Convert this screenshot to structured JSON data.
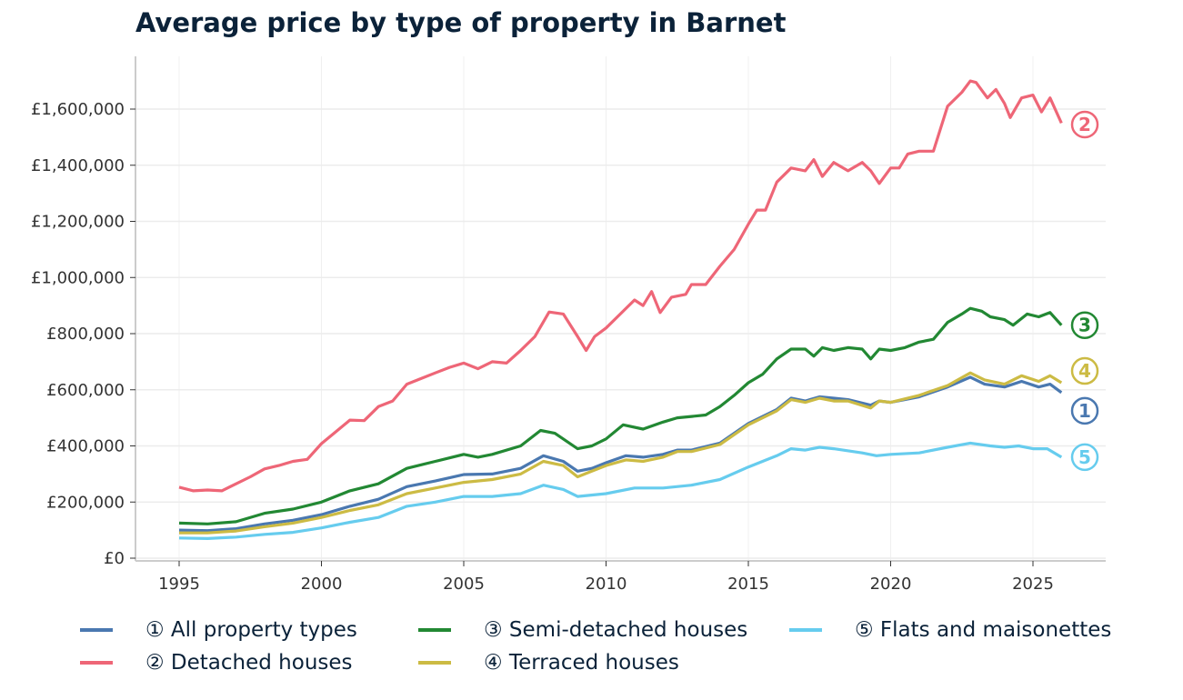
{
  "chart_data": {
    "type": "line",
    "title": "Average price by type of property in Barnet",
    "xlabel": "",
    "ylabel": "",
    "xlim": [
      1993.5,
      2027.7
    ],
    "ylim": [
      -10000,
      1800000
    ],
    "x_ticks": [
      1995,
      2000,
      2005,
      2010,
      2015,
      2020,
      2025
    ],
    "x_tick_labels": [
      "1995",
      "2000",
      "2005",
      "2010",
      "2015",
      "2020",
      "2025"
    ],
    "y_ticks": [
      0,
      200000,
      400000,
      600000,
      800000,
      1000000,
      1200000,
      1400000,
      1600000
    ],
    "y_tick_labels": [
      "£0",
      "£200,000",
      "£400,000",
      "£600,000",
      "£800,000",
      "£1,000,000",
      "£1,200,000",
      "£1,400,000",
      "£1,600,000"
    ],
    "grid": true,
    "legend_position": "bottom",
    "series": [
      {
        "name": "① All property types",
        "marker": "1",
        "color": "#4a78b0",
        "points": [
          [
            1995,
            100000
          ],
          [
            1996,
            98000
          ],
          [
            1997,
            105000
          ],
          [
            1998,
            122000
          ],
          [
            1999,
            135000
          ],
          [
            2000,
            155000
          ],
          [
            2001,
            185000
          ],
          [
            2002,
            210000
          ],
          [
            2003,
            255000
          ],
          [
            2004,
            275000
          ],
          [
            2005,
            298000
          ],
          [
            2006,
            300000
          ],
          [
            2007,
            320000
          ],
          [
            2007.8,
            365000
          ],
          [
            2008.5,
            345000
          ],
          [
            2009,
            310000
          ],
          [
            2009.5,
            320000
          ],
          [
            2010,
            340000
          ],
          [
            2010.7,
            365000
          ],
          [
            2011.3,
            360000
          ],
          [
            2012,
            370000
          ],
          [
            2012.5,
            385000
          ],
          [
            2013,
            385000
          ],
          [
            2014,
            410000
          ],
          [
            2015,
            480000
          ],
          [
            2016,
            530000
          ],
          [
            2016.5,
            570000
          ],
          [
            2017,
            560000
          ],
          [
            2017.5,
            575000
          ],
          [
            2018,
            570000
          ],
          [
            2018.5,
            565000
          ],
          [
            2019.3,
            545000
          ],
          [
            2019.6,
            560000
          ],
          [
            2020,
            555000
          ],
          [
            2021,
            575000
          ],
          [
            2022,
            610000
          ],
          [
            2022.8,
            645000
          ],
          [
            2023.3,
            620000
          ],
          [
            2024,
            610000
          ],
          [
            2024.6,
            630000
          ],
          [
            2025.2,
            610000
          ],
          [
            2025.6,
            620000
          ],
          [
            2026,
            590000
          ]
        ]
      },
      {
        "name": "② Detached houses",
        "marker": "2",
        "color": "#ee6677",
        "points": [
          [
            1995,
            253000
          ],
          [
            1995.5,
            240000
          ],
          [
            1996,
            243000
          ],
          [
            1996.5,
            240000
          ],
          [
            1997,
            265000
          ],
          [
            1997.5,
            290000
          ],
          [
            1998,
            318000
          ],
          [
            1998.5,
            330000
          ],
          [
            1999,
            345000
          ],
          [
            1999.5,
            352000
          ],
          [
            2000,
            408000
          ],
          [
            2000.5,
            450000
          ],
          [
            2001,
            492000
          ],
          [
            2001.5,
            490000
          ],
          [
            2002,
            540000
          ],
          [
            2002.5,
            560000
          ],
          [
            2003,
            620000
          ],
          [
            2003.5,
            640000
          ],
          [
            2004,
            660000
          ],
          [
            2004.5,
            680000
          ],
          [
            2005,
            695000
          ],
          [
            2005.5,
            675000
          ],
          [
            2006,
            700000
          ],
          [
            2006.5,
            695000
          ],
          [
            2007,
            740000
          ],
          [
            2007.5,
            790000
          ],
          [
            2008,
            877000
          ],
          [
            2008.5,
            870000
          ],
          [
            2009,
            790000
          ],
          [
            2009.3,
            740000
          ],
          [
            2009.6,
            790000
          ],
          [
            2010,
            820000
          ],
          [
            2010.5,
            870000
          ],
          [
            2011,
            920000
          ],
          [
            2011.3,
            900000
          ],
          [
            2011.6,
            950000
          ],
          [
            2011.9,
            875000
          ],
          [
            2012.3,
            930000
          ],
          [
            2012.8,
            940000
          ],
          [
            2013,
            975000
          ],
          [
            2013.5,
            975000
          ],
          [
            2014,
            1040000
          ],
          [
            2014.5,
            1100000
          ],
          [
            2015,
            1190000
          ],
          [
            2015.3,
            1240000
          ],
          [
            2015.6,
            1240000
          ],
          [
            2016,
            1340000
          ],
          [
            2016.5,
            1390000
          ],
          [
            2017,
            1380000
          ],
          [
            2017.3,
            1420000
          ],
          [
            2017.6,
            1360000
          ],
          [
            2018,
            1410000
          ],
          [
            2018.5,
            1380000
          ],
          [
            2019,
            1410000
          ],
          [
            2019.3,
            1380000
          ],
          [
            2019.6,
            1335000
          ],
          [
            2020,
            1390000
          ],
          [
            2020.3,
            1390000
          ],
          [
            2020.6,
            1440000
          ],
          [
            2021,
            1450000
          ],
          [
            2021.5,
            1450000
          ],
          [
            2022,
            1610000
          ],
          [
            2022.5,
            1660000
          ],
          [
            2022.8,
            1700000
          ],
          [
            2023,
            1695000
          ],
          [
            2023.4,
            1640000
          ],
          [
            2023.7,
            1670000
          ],
          [
            2024,
            1620000
          ],
          [
            2024.2,
            1570000
          ],
          [
            2024.6,
            1640000
          ],
          [
            2025,
            1650000
          ],
          [
            2025.3,
            1590000
          ],
          [
            2025.6,
            1640000
          ],
          [
            2026,
            1550000
          ]
        ]
      },
      {
        "name": "③ Semi-detached houses",
        "marker": "3",
        "color": "#228833",
        "points": [
          [
            1995,
            125000
          ],
          [
            1996,
            122000
          ],
          [
            1997,
            130000
          ],
          [
            1998,
            160000
          ],
          [
            1999,
            175000
          ],
          [
            2000,
            200000
          ],
          [
            2001,
            240000
          ],
          [
            2002,
            265000
          ],
          [
            2003,
            320000
          ],
          [
            2004,
            345000
          ],
          [
            2005,
            370000
          ],
          [
            2005.5,
            360000
          ],
          [
            2006,
            370000
          ],
          [
            2007,
            400000
          ],
          [
            2007.7,
            455000
          ],
          [
            2008.2,
            445000
          ],
          [
            2009,
            390000
          ],
          [
            2009.5,
            400000
          ],
          [
            2010,
            425000
          ],
          [
            2010.6,
            475000
          ],
          [
            2011.3,
            460000
          ],
          [
            2012,
            485000
          ],
          [
            2012.5,
            500000
          ],
          [
            2013,
            505000
          ],
          [
            2013.5,
            510000
          ],
          [
            2014,
            540000
          ],
          [
            2014.5,
            580000
          ],
          [
            2015,
            625000
          ],
          [
            2015.5,
            655000
          ],
          [
            2016,
            710000
          ],
          [
            2016.5,
            745000
          ],
          [
            2017,
            745000
          ],
          [
            2017.3,
            720000
          ],
          [
            2017.6,
            750000
          ],
          [
            2018,
            740000
          ],
          [
            2018.5,
            750000
          ],
          [
            2019,
            745000
          ],
          [
            2019.3,
            710000
          ],
          [
            2019.6,
            745000
          ],
          [
            2020,
            740000
          ],
          [
            2020.5,
            750000
          ],
          [
            2021,
            770000
          ],
          [
            2021.5,
            780000
          ],
          [
            2022,
            840000
          ],
          [
            2022.5,
            870000
          ],
          [
            2022.8,
            890000
          ],
          [
            2023.2,
            880000
          ],
          [
            2023.5,
            860000
          ],
          [
            2024,
            850000
          ],
          [
            2024.3,
            830000
          ],
          [
            2024.8,
            870000
          ],
          [
            2025.2,
            860000
          ],
          [
            2025.6,
            875000
          ],
          [
            2026,
            830000
          ]
        ]
      },
      {
        "name": "④ Terraced houses",
        "marker": "4",
        "color": "#ccbb44",
        "points": [
          [
            1995,
            90000
          ],
          [
            1996,
            90000
          ],
          [
            1997,
            97000
          ],
          [
            1998,
            112000
          ],
          [
            1999,
            125000
          ],
          [
            2000,
            145000
          ],
          [
            2001,
            170000
          ],
          [
            2002,
            190000
          ],
          [
            2003,
            230000
          ],
          [
            2004,
            250000
          ],
          [
            2005,
            270000
          ],
          [
            2006,
            280000
          ],
          [
            2007,
            300000
          ],
          [
            2007.8,
            345000
          ],
          [
            2008.5,
            330000
          ],
          [
            2009,
            290000
          ],
          [
            2009.5,
            310000
          ],
          [
            2010,
            330000
          ],
          [
            2010.7,
            350000
          ],
          [
            2011.3,
            345000
          ],
          [
            2012,
            360000
          ],
          [
            2012.5,
            380000
          ],
          [
            2013,
            380000
          ],
          [
            2014,
            405000
          ],
          [
            2015,
            475000
          ],
          [
            2016,
            525000
          ],
          [
            2016.5,
            565000
          ],
          [
            2017,
            555000
          ],
          [
            2017.5,
            570000
          ],
          [
            2018,
            560000
          ],
          [
            2018.5,
            560000
          ],
          [
            2019.3,
            535000
          ],
          [
            2019.6,
            560000
          ],
          [
            2020,
            555000
          ],
          [
            2021,
            580000
          ],
          [
            2022,
            615000
          ],
          [
            2022.8,
            660000
          ],
          [
            2023.3,
            635000
          ],
          [
            2024,
            620000
          ],
          [
            2024.6,
            650000
          ],
          [
            2025.2,
            630000
          ],
          [
            2025.6,
            650000
          ],
          [
            2026,
            625000
          ]
        ]
      },
      {
        "name": "⑤ Flats and maisonettes",
        "marker": "5",
        "color": "#66ccee",
        "points": [
          [
            1995,
            72000
          ],
          [
            1996,
            70000
          ],
          [
            1997,
            75000
          ],
          [
            1998,
            85000
          ],
          [
            1999,
            92000
          ],
          [
            2000,
            108000
          ],
          [
            2001,
            128000
          ],
          [
            2002,
            145000
          ],
          [
            2003,
            185000
          ],
          [
            2004,
            200000
          ],
          [
            2005,
            220000
          ],
          [
            2006,
            220000
          ],
          [
            2007,
            230000
          ],
          [
            2007.8,
            260000
          ],
          [
            2008.5,
            245000
          ],
          [
            2009,
            220000
          ],
          [
            2010,
            230000
          ],
          [
            2011,
            250000
          ],
          [
            2012,
            250000
          ],
          [
            2013,
            260000
          ],
          [
            2014,
            280000
          ],
          [
            2015,
            325000
          ],
          [
            2016,
            365000
          ],
          [
            2016.5,
            390000
          ],
          [
            2017,
            385000
          ],
          [
            2017.5,
            395000
          ],
          [
            2018,
            390000
          ],
          [
            2019,
            375000
          ],
          [
            2019.5,
            365000
          ],
          [
            2020,
            370000
          ],
          [
            2021,
            375000
          ],
          [
            2022,
            395000
          ],
          [
            2022.8,
            410000
          ],
          [
            2023.5,
            400000
          ],
          [
            2024,
            395000
          ],
          [
            2024.5,
            400000
          ],
          [
            2025,
            390000
          ],
          [
            2025.5,
            390000
          ],
          [
            2026,
            360000
          ]
        ]
      }
    ]
  }
}
